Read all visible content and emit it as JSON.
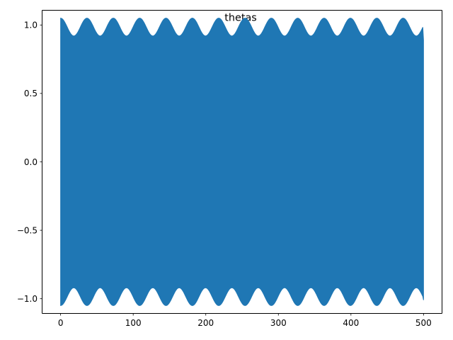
{
  "chart_data": {
    "type": "line",
    "title": "thetas",
    "xlabel": "",
    "ylabel": "",
    "xlim": [
      -25,
      525
    ],
    "ylim": [
      -1.105,
      1.105
    ],
    "xticks": [
      0,
      100,
      200,
      300,
      400,
      500
    ],
    "xtick_labels": [
      "0",
      "100",
      "200",
      "300",
      "400",
      "500"
    ],
    "yticks": [
      -1.0,
      -0.5,
      0.0,
      0.5,
      1.0
    ],
    "ytick_labels": [
      "−1.0",
      "−0.5",
      "0.0",
      "0.5",
      "1.0"
    ],
    "grid": false,
    "legend": "none",
    "color": "#1f77b4",
    "series": [
      {
        "x_range": [
          0,
          500
        ],
        "amplitude_mean": 0.985,
        "amplitude_variation": 0.065,
        "envelope_period": 36.3,
        "envelope_start": 1.05,
        "final_upper": 0.89,
        "final_lower": -1.01
      }
    ]
  }
}
